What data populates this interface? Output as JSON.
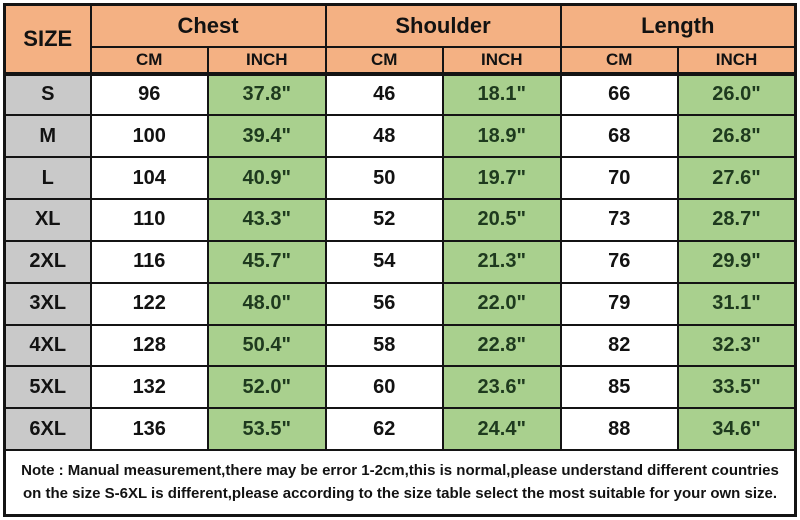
{
  "colors": {
    "header_orange": "#F4B183",
    "inch_green": "#A9D08E",
    "size_gray": "#C9C9C9",
    "border_black": "#141414",
    "inch_text_green": "#1e3a1e"
  },
  "table": {
    "size_header": "SIZE",
    "groups": [
      {
        "label": "Chest"
      },
      {
        "label": "Shoulder"
      },
      {
        "label": "Length"
      }
    ],
    "unit_headers": [
      "CM",
      "INCH",
      "CM",
      "INCH",
      "CM",
      "INCH"
    ],
    "rows": [
      {
        "size": "S",
        "chest_cm": "96",
        "chest_inch": "37.8\"",
        "shoulder_cm": "46",
        "shoulder_inch": "18.1\"",
        "length_cm": "66",
        "length_inch": "26.0\""
      },
      {
        "size": "M",
        "chest_cm": "100",
        "chest_inch": "39.4\"",
        "shoulder_cm": "48",
        "shoulder_inch": "18.9\"",
        "length_cm": "68",
        "length_inch": "26.8\""
      },
      {
        "size": "L",
        "chest_cm": "104",
        "chest_inch": "40.9\"",
        "shoulder_cm": "50",
        "shoulder_inch": "19.7\"",
        "length_cm": "70",
        "length_inch": "27.6\""
      },
      {
        "size": "XL",
        "chest_cm": "110",
        "chest_inch": "43.3\"",
        "shoulder_cm": "52",
        "shoulder_inch": "20.5\"",
        "length_cm": "73",
        "length_inch": "28.7\""
      },
      {
        "size": "2XL",
        "chest_cm": "116",
        "chest_inch": "45.7\"",
        "shoulder_cm": "54",
        "shoulder_inch": "21.3\"",
        "length_cm": "76",
        "length_inch": "29.9\""
      },
      {
        "size": "3XL",
        "chest_cm": "122",
        "chest_inch": "48.0\"",
        "shoulder_cm": "56",
        "shoulder_inch": "22.0\"",
        "length_cm": "79",
        "length_inch": "31.1\""
      },
      {
        "size": "4XL",
        "chest_cm": "128",
        "chest_inch": "50.4\"",
        "shoulder_cm": "58",
        "shoulder_inch": "22.8\"",
        "length_cm": "82",
        "length_inch": "32.3\""
      },
      {
        "size": "5XL",
        "chest_cm": "132",
        "chest_inch": "52.0\"",
        "shoulder_cm": "60",
        "shoulder_inch": "23.6\"",
        "length_cm": "85",
        "length_inch": "33.5\""
      },
      {
        "size": "6XL",
        "chest_cm": "136",
        "chest_inch": "53.5\"",
        "shoulder_cm": "62",
        "shoulder_inch": "24.4\"",
        "length_cm": "88",
        "length_inch": "34.6\""
      }
    ],
    "note": "Note : Manual measurement,there may be error 1-2cm,this is normal,please understand different countries on the size S-6XL is different,please according to the size table select the most suitable for your own size."
  }
}
